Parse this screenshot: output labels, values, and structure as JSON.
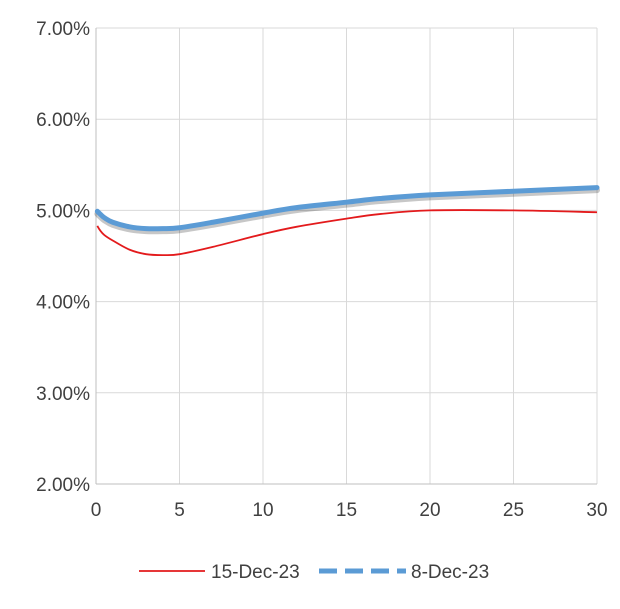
{
  "chart_data": {
    "type": "line",
    "title": "",
    "xlabel": "",
    "ylabel": "",
    "xlim": [
      0,
      30
    ],
    "ylim": [
      0.02,
      0.07
    ],
    "x_ticks": [
      0,
      5,
      10,
      15,
      20,
      25,
      30
    ],
    "x_tick_labels": [
      "0",
      "5",
      "10",
      "15",
      "20",
      "25",
      "30"
    ],
    "y_ticks": [
      0.02,
      0.03,
      0.04,
      0.05,
      0.06,
      0.07
    ],
    "y_tick_labels": [
      "2.00%",
      "3.00%",
      "4.00%",
      "5.00%",
      "6.00%",
      "7.00%"
    ],
    "grid": true,
    "legend_position": "bottom",
    "series": [
      {
        "name": "15-Dec-23",
        "color": "#e31a1c",
        "style": "solid",
        "x": [
          0.08,
          0.25,
          0.5,
          1,
          2,
          3,
          4,
          5,
          7,
          10,
          12,
          15,
          17,
          20,
          25,
          30
        ],
        "y": [
          0.0483,
          0.0478,
          0.0473,
          0.0467,
          0.0457,
          0.0452,
          0.0451,
          0.0452,
          0.046,
          0.0474,
          0.0482,
          0.0491,
          0.0496,
          0.05,
          0.05,
          0.0498
        ]
      },
      {
        "name": "8-Dec-23",
        "color": "#5b9bd5",
        "style": "dashed",
        "x": [
          0.08,
          0.25,
          0.5,
          1,
          2,
          3,
          4,
          5,
          7,
          10,
          12,
          15,
          17,
          20,
          25,
          30
        ],
        "y": [
          0.0499,
          0.0496,
          0.0492,
          0.0487,
          0.0482,
          0.048,
          0.048,
          0.0481,
          0.0487,
          0.0497,
          0.0503,
          0.0509,
          0.0513,
          0.0517,
          0.0521,
          0.0525
        ]
      }
    ]
  }
}
